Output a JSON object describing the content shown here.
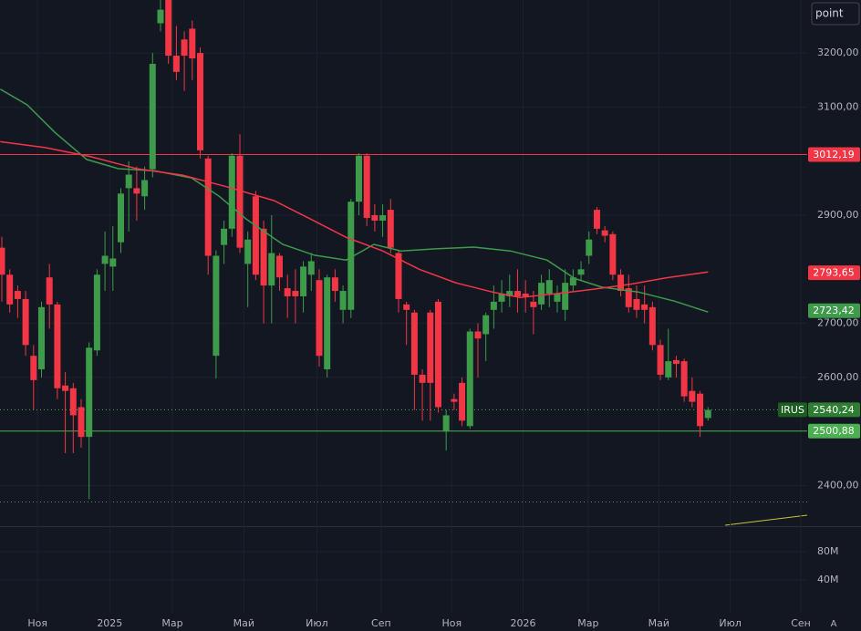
{
  "chart_data": {
    "type": "candlestick",
    "symbol": "IRUS",
    "button": "point",
    "scale_mode": "A",
    "up_color": "#3d9b4a",
    "down_color": "#f23645",
    "open": [
      2840,
      2790,
      2760,
      2745,
      2640,
      2615,
      2785,
      2735,
      2585,
      2580,
      2545,
      2490,
      2650,
      2810,
      2805,
      2850,
      2950,
      2950,
      2935,
      2985,
      3255,
      3298,
      3195,
      3225,
      3245,
      3200,
      3005,
      2640,
      2845,
      2875,
      3010,
      2810,
      2935,
      2875,
      2770,
      2825,
      2765,
      2760,
      2750,
      2790,
      2780,
      2615,
      2785,
      2725,
      2725,
      2925,
      3010,
      2900,
      2890,
      2910,
      2830,
      2735,
      2720,
      2605,
      2720,
      2740,
      2500,
      2560,
      2590,
      2510,
      2685,
      2680,
      2725,
      2740,
      2750,
      2760,
      2755,
      2740,
      2735,
      2755,
      2740,
      2725,
      2770,
      2790,
      2825,
      2910,
      2872,
      2865,
      2790,
      2765,
      2745,
      2735,
      2730,
      2660,
      2600,
      2632,
      2630,
      2575,
      2570,
      2525
    ],
    "high": [
      2860,
      2800,
      2770,
      2760,
      2660,
      2740,
      2810,
      2740,
      2610,
      2590,
      2560,
      2665,
      2800,
      2870,
      2880,
      2950,
      3000,
      2990,
      2990,
      3200,
      3298,
      3298,
      3250,
      3240,
      3260,
      3210,
      3010,
      2835,
      2890,
      3015,
      3050,
      2870,
      2945,
      2890,
      2900,
      2830,
      2790,
      2800,
      2815,
      2830,
      2800,
      2790,
      2800,
      2770,
      2930,
      3015,
      3015,
      2920,
      2920,
      2930,
      2835,
      2740,
      2725,
      2615,
      2725,
      2745,
      2540,
      2570,
      2600,
      2690,
      2700,
      2720,
      2770,
      2780,
      2790,
      2800,
      2780,
      2760,
      2790,
      2800,
      2770,
      2800,
      2800,
      2815,
      2870,
      2915,
      2880,
      2870,
      2800,
      2790,
      2770,
      2770,
      2740,
      2670,
      2690,
      2640,
      2635,
      2600,
      2575,
      2545
    ],
    "low": [
      2740,
      2720,
      2710,
      2640,
      2540,
      2600,
      2690,
      2560,
      2460,
      2460,
      2470,
      2375,
      2640,
      2760,
      2760,
      2830,
      2870,
      2890,
      2910,
      2970,
      3240,
      3180,
      3150,
      3130,
      3150,
      3005,
      2790,
      2598,
      2810,
      2860,
      2830,
      2730,
      2780,
      2700,
      2700,
      2760,
      2710,
      2700,
      2720,
      2760,
      2620,
      2600,
      2740,
      2700,
      2710,
      2900,
      2880,
      2870,
      2860,
      2830,
      2720,
      2660,
      2540,
      2520,
      2520,
      2535,
      2465,
      2540,
      2510,
      2505,
      2600,
      2630,
      2690,
      2720,
      2730,
      2720,
      2720,
      2680,
      2725,
      2730,
      2720,
      2705,
      2760,
      2780,
      2810,
      2865,
      2850,
      2780,
      2750,
      2720,
      2710,
      2700,
      2650,
      2595,
      2595,
      2600,
      2555,
      2545,
      2490,
      2520
    ],
    "close": [
      2790,
      2735,
      2745,
      2660,
      2595,
      2730,
      2735,
      2580,
      2575,
      2530,
      2490,
      2655,
      2790,
      2825,
      2820,
      2940,
      2975,
      2940,
      2965,
      3180,
      3280,
      3195,
      3165,
      3195,
      3190,
      3020,
      2825,
      2825,
      2875,
      3010,
      2840,
      2855,
      2790,
      2770,
      2830,
      2785,
      2750,
      2750,
      2805,
      2815,
      2640,
      2785,
      2760,
      2760,
      2925,
      3010,
      2895,
      2890,
      2900,
      2840,
      2745,
      2725,
      2605,
      2590,
      2590,
      2545,
      2530,
      2555,
      2520,
      2685,
      2672,
      2715,
      2740,
      2755,
      2760,
      2750,
      2750,
      2730,
      2775,
      2780,
      2755,
      2775,
      2785,
      2800,
      2855,
      2875,
      2862,
      2790,
      2760,
      2730,
      2725,
      2725,
      2660,
      2605,
      2630,
      2625,
      2565,
      2555,
      2510,
      2540
    ],
    "series": [
      {
        "color": "#3d9b4a",
        "x": [
          -0.2,
          3.2,
          6.7,
          10.7,
          14.7,
          19.3,
          23.9,
          27.4,
          30.8,
          35.4,
          39.4,
          43.4,
          46.9,
          50.3,
          54.9,
          59.5,
          64.1,
          68.7,
          72.2,
          75.6,
          80.2,
          84.8,
          89
        ],
        "values": [
          3133,
          3104,
          3053,
          3003,
          2986,
          2982,
          2969,
          2935,
          2893,
          2846,
          2826,
          2817,
          2846,
          2834,
          2838,
          2841,
          2834,
          2817,
          2783,
          2767,
          2758,
          2741,
          2721
        ],
        "last_value": 2723.42,
        "last_label": "2723,42"
      },
      {
        "color": "#f23645",
        "x": [
          -0.2,
          5.5,
          11.3,
          17,
          22.8,
          28.5,
          34.3,
          38.9,
          43.4,
          48,
          52.6,
          57.2,
          61.8,
          65.3,
          69.9,
          74.5,
          79.1,
          83.7,
          89
        ],
        "values": [
          3036,
          3025,
          3008,
          2986,
          2974,
          2952,
          2927,
          2893,
          2859,
          2834,
          2800,
          2775,
          2758,
          2748,
          2755,
          2763,
          2772,
          2784,
          2795
        ],
        "last_value": 2793.65,
        "last_label": "2793,65"
      }
    ],
    "levels": [
      {
        "value": 3012.19,
        "label": "3012,19",
        "color": "#f23645"
      },
      {
        "value": 2500.88,
        "label": "2500,88",
        "color": "#4caf50"
      }
    ],
    "price": {
      "value": 2540.24,
      "label": "2540,24"
    },
    "ylim": [
      2325,
      3298
    ],
    "yticks": [
      {
        "value": 2400,
        "label": "2400,00"
      },
      {
        "value": 2600,
        "label": "2600,00"
      },
      {
        "value": 2700,
        "label": "2700,00"
      },
      {
        "value": 2900,
        "label": "2900,00"
      },
      {
        "value": 3100,
        "label": "3100,00"
      },
      {
        "value": 3200,
        "label": "3200,00"
      }
    ],
    "y2lim": [
      0,
      115000000
    ],
    "y2ticks": [
      {
        "value": 40000000,
        "label": "40M"
      },
      {
        "value": 80000000,
        "label": "80M"
      }
    ],
    "xlim": [
      -0.23,
      101.5
    ],
    "xticks": [
      {
        "value": 4.5,
        "label": "Ноя"
      },
      {
        "value": 13.6,
        "label": "2025"
      },
      {
        "value": 21.5,
        "label": "Мар"
      },
      {
        "value": 30.5,
        "label": "Май"
      },
      {
        "value": 39.7,
        "label": "Июл"
      },
      {
        "value": 47.8,
        "label": "Сеп"
      },
      {
        "value": 56.7,
        "label": "Ноя"
      },
      {
        "value": 65.7,
        "label": "2026"
      },
      {
        "value": 73.9,
        "label": "Мар"
      },
      {
        "value": 82.8,
        "label": "Май"
      },
      {
        "value": 91.8,
        "label": "Июл"
      },
      {
        "value": 100.7,
        "label": "Сен"
      }
    ]
  }
}
